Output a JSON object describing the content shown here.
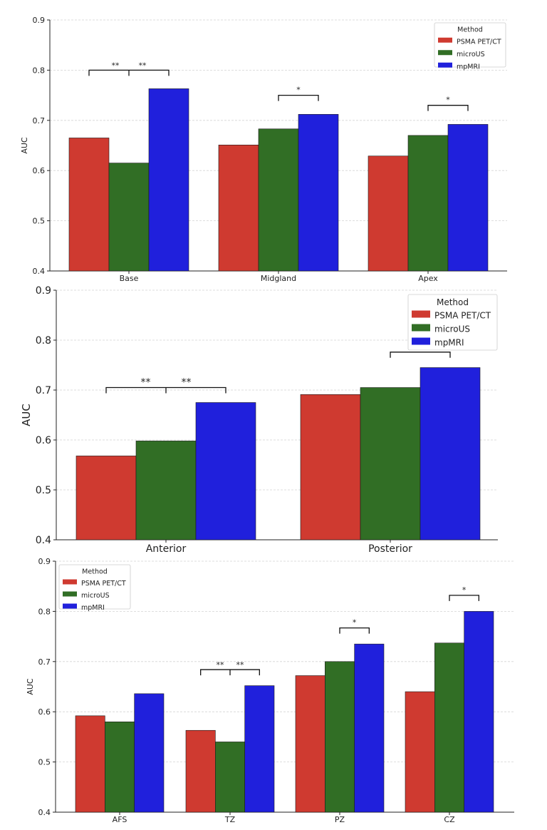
{
  "chart_data": [
    {
      "type": "bar",
      "title": "",
      "xlabel": "",
      "ylabel": "AUC",
      "ylim": [
        0.4,
        0.9
      ],
      "yticks": [
        "0.4",
        "0.5",
        "0.6",
        "0.7",
        "0.8",
        "0.9"
      ],
      "categories": [
        "Base",
        "Midgland",
        "Apex"
      ],
      "series": [
        {
          "name": "PSMA PET/CT",
          "values": [
            0.665,
            0.651,
            0.629
          ]
        },
        {
          "name": "microUS",
          "values": [
            0.615,
            0.683,
            0.67
          ]
        },
        {
          "name": "mpMRI",
          "values": [
            0.763,
            0.712,
            0.692
          ]
        }
      ],
      "legend_title": "Method",
      "legend_position": "top-right",
      "grid": true,
      "significance": [
        {
          "category": 0,
          "from": 0,
          "to": 2,
          "y": 0.8,
          "labels": [
            "**",
            "**"
          ]
        },
        {
          "category": 1,
          "from": 1,
          "to": 2,
          "y": 0.75,
          "labels": [
            "*"
          ]
        },
        {
          "category": 2,
          "from": 1,
          "to": 2,
          "y": 0.73,
          "labels": [
            "*"
          ]
        }
      ]
    },
    {
      "type": "bar",
      "title": "",
      "xlabel": "",
      "ylabel": "AUC",
      "ylim": [
        0.4,
        0.9
      ],
      "yticks": [
        "0.4",
        "0.5",
        "0.6",
        "0.7",
        "0.8",
        "0.9"
      ],
      "categories": [
        "Anterior",
        "Posterior"
      ],
      "series": [
        {
          "name": "PSMA PET/CT",
          "values": [
            0.568,
            0.691
          ]
        },
        {
          "name": "microUS",
          "values": [
            0.598,
            0.705
          ]
        },
        {
          "name": "mpMRI",
          "values": [
            0.675,
            0.745
          ]
        }
      ],
      "legend_title": "Method",
      "legend_position": "top-right",
      "grid": true,
      "significance": [
        {
          "category": 0,
          "from": 0,
          "to": 2,
          "y": 0.705,
          "labels": [
            "**",
            "**"
          ]
        },
        {
          "category": 1,
          "from": 1,
          "to": 2,
          "y": 0.776,
          "labels": [
            "*"
          ]
        }
      ]
    },
    {
      "type": "bar",
      "title": "",
      "xlabel": "",
      "ylabel": "AUC",
      "ylim": [
        0.4,
        0.9
      ],
      "yticks": [
        "0.4",
        "0.5",
        "0.6",
        "0.7",
        "0.8",
        "0.9"
      ],
      "categories": [
        "AFS",
        "TZ",
        "PZ",
        "CZ"
      ],
      "series": [
        {
          "name": "PSMA PET/CT",
          "values": [
            0.592,
            0.563,
            0.672,
            0.64
          ]
        },
        {
          "name": "microUS",
          "values": [
            0.58,
            0.54,
            0.7,
            0.737
          ]
        },
        {
          "name": "mpMRI",
          "values": [
            0.636,
            0.652,
            0.735,
            0.8
          ]
        }
      ],
      "legend_title": "Method",
      "legend_position": "top-left",
      "grid": true,
      "significance": [
        {
          "category": 1,
          "from": 0,
          "to": 2,
          "y": 0.684,
          "labels": [
            "**",
            "**"
          ]
        },
        {
          "category": 2,
          "from": 1,
          "to": 2,
          "y": 0.767,
          "labels": [
            "*"
          ]
        },
        {
          "category": 3,
          "from": 1,
          "to": 2,
          "y": 0.832,
          "labels": [
            "*"
          ]
        }
      ]
    }
  ],
  "colors": {
    "PSMA PET/CT": "#cf3a30",
    "microUS": "#316e25",
    "mpMRI": "#2020dc",
    "grid": "#d4d4d4",
    "axis": "#222222"
  }
}
